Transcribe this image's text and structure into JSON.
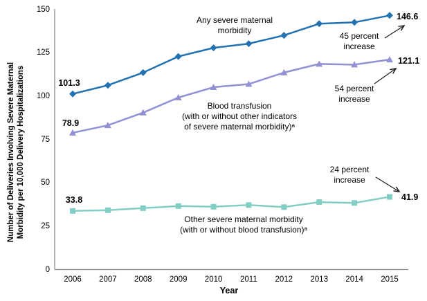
{
  "y_axis": {
    "title": "Number of Deliveries Involving Severe Maternal\nMorbidity per 10,000 Delivery Hospitalizations",
    "ticks": [
      "0",
      "25",
      "50",
      "75",
      "100",
      "125",
      "150"
    ]
  },
  "x_axis": {
    "title": "Year",
    "ticks": [
      "2006",
      "2007",
      "2008",
      "2009",
      "2010",
      "2011",
      "2012",
      "2013",
      "2014",
      "2015"
    ]
  },
  "callouts": {
    "any": "Any severe maternal\nmorbidity",
    "inc45": "45 percent\nincrease",
    "blood": "Blood transfusion\n(with or without other indicators\nof severe maternal morbidity)ᵃ",
    "inc54": "54 percent\nincrease",
    "other": "Other severe maternal morbidity\n(with or without blood transfusion)ᵃ",
    "inc24": "24 percent\nincrease"
  },
  "chart_data": {
    "type": "line",
    "title": "",
    "xlabel": "Year",
    "ylabel": "Number of Deliveries Involving Severe Maternal Morbidity per 10,000 Delivery Hospitalizations",
    "x": [
      2006,
      2007,
      2008,
      2009,
      2010,
      2011,
      2012,
      2013,
      2014,
      2015
    ],
    "ylim": [
      0,
      150
    ],
    "yticks": [
      0,
      25,
      50,
      75,
      100,
      125,
      150
    ],
    "grid": false,
    "legend": "inline-annotations",
    "series": [
      {
        "name": "Any severe maternal morbidity",
        "marker": "diamond",
        "color": "#2272b2",
        "values": [
          101.3,
          106.3,
          113.6,
          122.9,
          127.9,
          130.3,
          135.1,
          141.8,
          142.6,
          146.6
        ],
        "start_label": "101.3",
        "end_label": "146.6",
        "percent_increase": "45 percent increase"
      },
      {
        "name": "Blood transfusion (with or without other indicators of severe maternal morbidity)ᵃ",
        "marker": "triangle",
        "color": "#9191d3",
        "values": [
          78.9,
          83.2,
          90.5,
          99.2,
          105.2,
          107.0,
          113.6,
          118.6,
          118.2,
          121.1
        ],
        "start_label": "78.9",
        "end_label": "121.1",
        "percent_increase": "54 percent increase"
      },
      {
        "name": "Other severe maternal morbidity (with or without blood transfusion)ᵃ",
        "marker": "square",
        "color": "#82cec4",
        "values": [
          33.8,
          34.2,
          35.4,
          36.6,
          36.2,
          37.2,
          36.0,
          38.9,
          38.4,
          41.9
        ],
        "start_label": "33.8",
        "end_label": "41.9",
        "percent_increase": "24 percent increase"
      }
    ],
    "axis_color": "#8c8c8c",
    "annotation_arrow_color": "#1a1a1a"
  }
}
